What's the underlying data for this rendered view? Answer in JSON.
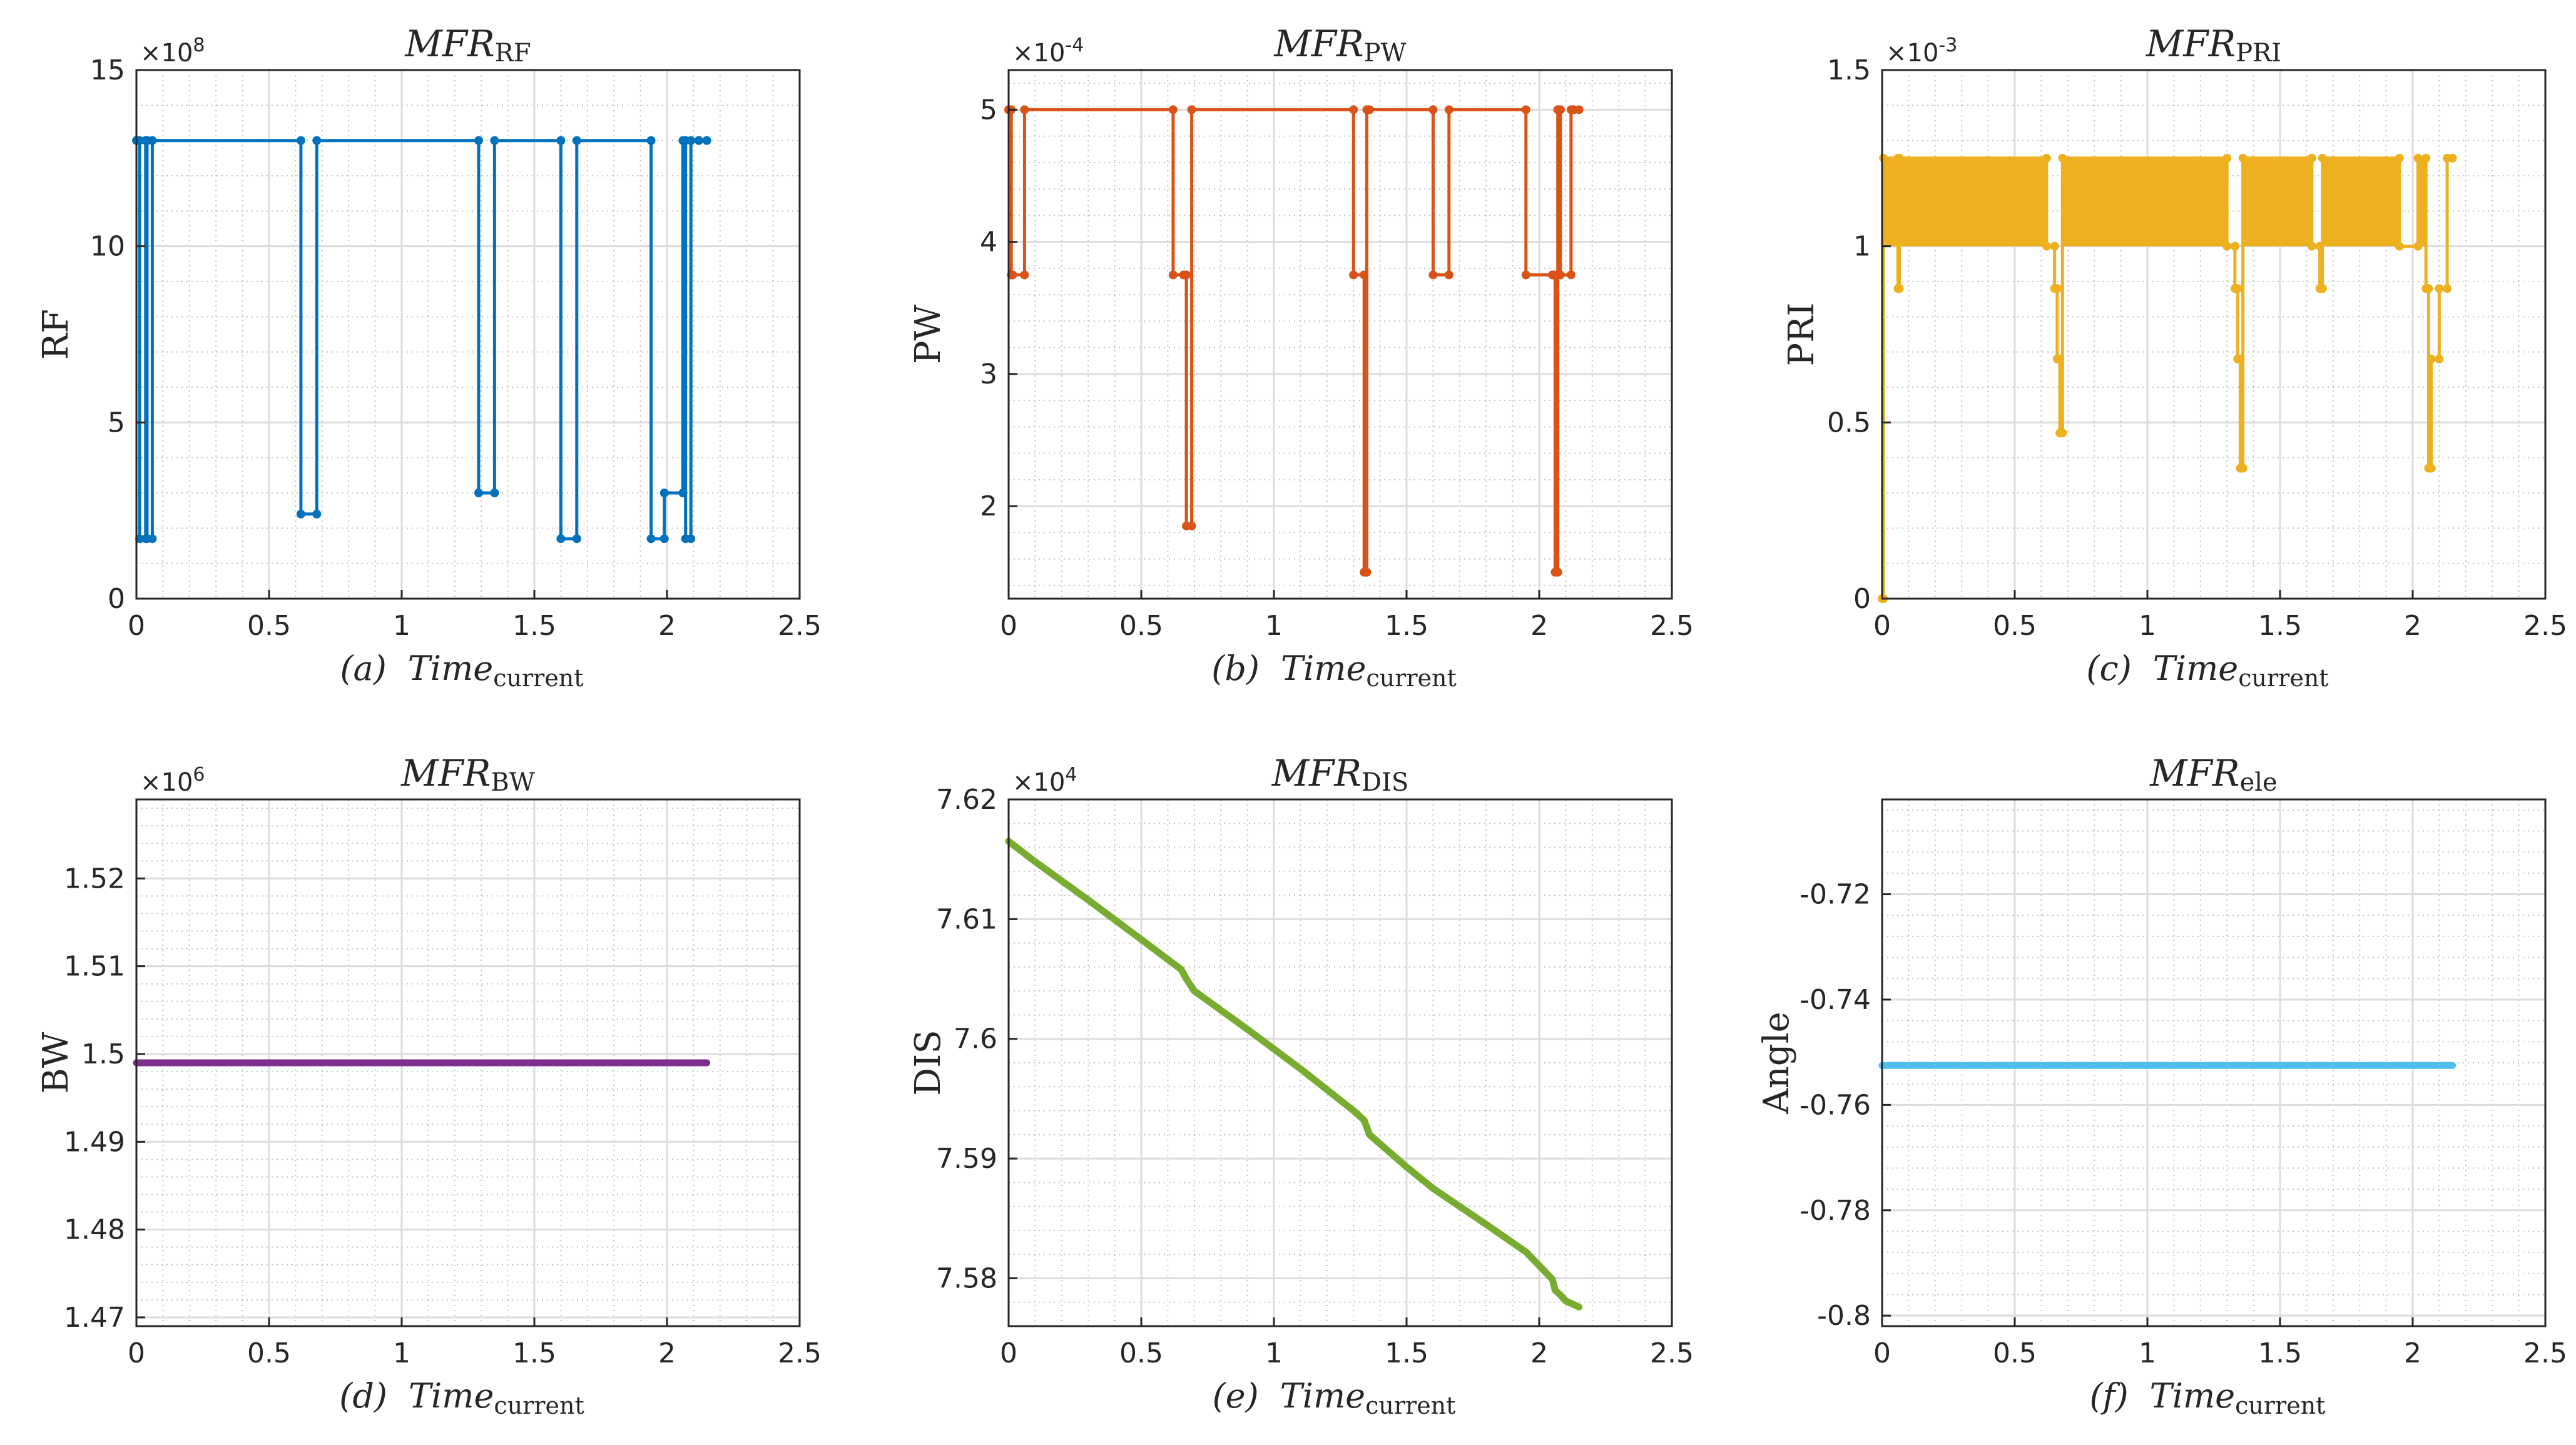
{
  "chart_data": [
    {
      "type": "line",
      "title": "MFR",
      "title_sub": "RF",
      "caption": "(a)",
      "xlabel": "Time",
      "xlabel_sub": "current",
      "ylabel": "RF",
      "exponent": {
        "base": "×10",
        "power": "8"
      },
      "xlim": [
        0,
        2.5
      ],
      "ylim": [
        0,
        15
      ],
      "xticks": [
        0,
        0.5,
        1,
        1.5,
        2,
        2.5
      ],
      "xtick_labels": [
        "0",
        "0.5",
        "1",
        "1.5",
        "2",
        "2.5"
      ],
      "yticks": [
        0,
        5,
        10,
        15
      ],
      "ytick_labels": [
        "0",
        "5",
        "10",
        "15"
      ],
      "grid": true,
      "minor_grid": true,
      "markers": true,
      "color": "#0072BD",
      "series": [
        {
          "x": [
            0,
            0.012,
            0.012,
            0.035,
            0.035,
            0.04,
            0.04,
            0.06,
            0.06,
            0.62,
            0.62,
            0.68,
            0.68,
            1.29,
            1.29,
            1.35,
            1.35,
            1.6,
            1.6,
            1.66,
            1.66,
            1.94,
            1.94,
            1.99,
            1.99,
            2.06,
            2.06,
            2.07,
            2.07,
            2.09,
            2.09,
            2.12,
            2.12,
            2.15
          ],
          "y": [
            13,
            13,
            1.7,
            1.7,
            13,
            13,
            1.7,
            1.7,
            13,
            13,
            2.4,
            2.4,
            13,
            13,
            3.0,
            3.0,
            13,
            13,
            1.7,
            1.7,
            13,
            13,
            1.7,
            1.7,
            3.0,
            3.0,
            13,
            13,
            1.7,
            1.7,
            13,
            13,
            13,
            13
          ]
        }
      ]
    },
    {
      "type": "line",
      "title": "MFR",
      "title_sub": "PW",
      "caption": "(b)",
      "xlabel": "Time",
      "xlabel_sub": "current",
      "ylabel": "PW",
      "exponent": {
        "base": "×10",
        "power": "-4"
      },
      "xlim": [
        0,
        2.5
      ],
      "ylim": [
        1.3,
        5.3
      ],
      "xticks": [
        0,
        0.5,
        1,
        1.5,
        2,
        2.5
      ],
      "xtick_labels": [
        "0",
        "0.5",
        "1",
        "1.5",
        "2",
        "2.5"
      ],
      "yticks": [
        2,
        3,
        4,
        5
      ],
      "ytick_labels": [
        "2",
        "3",
        "4",
        "5"
      ],
      "grid": true,
      "minor_grid": true,
      "markers": true,
      "color": "#D95319",
      "series": [
        {
          "x": [
            0,
            0.01,
            0.01,
            0.015,
            0.015,
            0.06,
            0.06,
            0.62,
            0.62,
            0.66,
            0.66,
            0.67,
            0.67,
            0.69,
            0.69,
            1.3,
            1.3,
            1.34,
            1.34,
            1.35,
            1.35,
            1.36,
            1.36,
            1.6,
            1.6,
            1.66,
            1.66,
            1.95,
            1.95,
            2.05,
            2.05,
            2.06,
            2.06,
            2.07,
            2.07,
            2.08,
            2.08,
            2.12,
            2.12,
            2.13,
            2.13,
            2.15
          ],
          "y": [
            5,
            5,
            3.75,
            3.75,
            3.75,
            3.75,
            5,
            5,
            3.75,
            3.75,
            3.75,
            3.75,
            1.85,
            1.85,
            5,
            5,
            3.75,
            3.75,
            1.5,
            1.5,
            5,
            5,
            5,
            5,
            3.75,
            3.75,
            5,
            5,
            3.75,
            3.75,
            3.75,
            3.75,
            1.5,
            1.5,
            5,
            5,
            3.75,
            3.75,
            5,
            5,
            5,
            5
          ]
        }
      ]
    },
    {
      "type": "line",
      "title": "MFR",
      "title_sub": "PRI",
      "caption": "(c)",
      "xlabel": "Time",
      "xlabel_sub": "current",
      "ylabel": "PRI",
      "exponent": {
        "base": "×10",
        "power": "-3"
      },
      "xlim": [
        0,
        2.5
      ],
      "ylim": [
        0,
        1.5
      ],
      "xticks": [
        0,
        0.5,
        1,
        1.5,
        2,
        2.5
      ],
      "xtick_labels": [
        "0",
        "0.5",
        "1",
        "1.5",
        "2",
        "2.5"
      ],
      "yticks": [
        0,
        0.5,
        1,
        1.5
      ],
      "ytick_labels": [
        "0",
        "0.5",
        "1",
        "1.5"
      ],
      "grid": true,
      "minor_grid": true,
      "markers": true,
      "color": "#EDB120",
      "band": {
        "ymin": 1.0,
        "ymax": 1.25,
        "segments": [
          [
            0.005,
            0.62
          ],
          [
            0.68,
            1.3
          ],
          [
            1.36,
            1.62
          ],
          [
            1.66,
            1.95
          ],
          [
            2.02,
            2.05
          ]
        ]
      },
      "series": [
        {
          "x": [
            0,
            0.005,
            0.005,
            0.06,
            0.06,
            0.065,
            0.065,
            0.62,
            0.62,
            0.65,
            0.65,
            0.66,
            0.66,
            0.67,
            0.67,
            0.68,
            0.68,
            1.3,
            1.3,
            1.33,
            1.33,
            1.34,
            1.34,
            1.35,
            1.35,
            1.36,
            1.36,
            1.62,
            1.62,
            1.65,
            1.65,
            1.66,
            1.66,
            1.95,
            1.95,
            2.02,
            2.02,
            2.05,
            2.05,
            2.06,
            2.06,
            2.07,
            2.07,
            2.1,
            2.1,
            2.13,
            2.13,
            2.15
          ],
          "y": [
            0,
            0,
            1.25,
            1.25,
            0.88,
            0.88,
            1.25,
            1.25,
            1.0,
            1.0,
            0.88,
            0.88,
            0.68,
            0.68,
            0.47,
            0.47,
            1.25,
            1.25,
            1.0,
            1.0,
            0.88,
            0.88,
            0.68,
            0.68,
            0.37,
            0.37,
            1.25,
            1.25,
            1.0,
            1.0,
            0.88,
            0.88,
            1.25,
            1.25,
            1.0,
            1.0,
            1.25,
            1.25,
            0.88,
            0.88,
            0.37,
            0.37,
            0.68,
            0.68,
            0.88,
            0.88,
            1.25,
            1.25
          ]
        }
      ]
    },
    {
      "type": "line",
      "title": "MFR",
      "title_sub": "BW",
      "caption": "(d)",
      "xlabel": "Time",
      "xlabel_sub": "current",
      "ylabel": "BW",
      "exponent": {
        "base": "×10",
        "power": "6"
      },
      "xlim": [
        0,
        2.5
      ],
      "ylim": [
        1.469,
        1.529
      ],
      "xticks": [
        0,
        0.5,
        1,
        1.5,
        2,
        2.5
      ],
      "xtick_labels": [
        "0",
        "0.5",
        "1",
        "1.5",
        "2",
        "2.5"
      ],
      "yticks": [
        1.47,
        1.48,
        1.49,
        1.5,
        1.51,
        1.52
      ],
      "ytick_labels": [
        "1.47",
        "1.48",
        "1.49",
        "1.5",
        "1.51",
        "1.52"
      ],
      "grid": true,
      "minor_grid": true,
      "markers": false,
      "color": "#7E2F8E",
      "series": [
        {
          "x": [
            0,
            2.15
          ],
          "y": [
            1.499,
            1.499
          ]
        }
      ]
    },
    {
      "type": "line",
      "title": "MFR",
      "title_sub": "DIS",
      "caption": "(e)",
      "xlabel": "Time",
      "xlabel_sub": "current",
      "ylabel": "DIS",
      "exponent": {
        "base": "×10",
        "power": "4"
      },
      "xlim": [
        0,
        2.5
      ],
      "ylim": [
        7.576,
        7.62
      ],
      "xticks": [
        0,
        0.5,
        1,
        1.5,
        2,
        2.5
      ],
      "xtick_labels": [
        "0",
        "0.5",
        "1",
        "1.5",
        "2",
        "2.5"
      ],
      "yticks": [
        7.58,
        7.59,
        7.6,
        7.61,
        7.62
      ],
      "ytick_labels": [
        "7.58",
        "7.59",
        "7.6",
        "7.61",
        "7.62"
      ],
      "grid": true,
      "minor_grid": true,
      "markers": false,
      "color": "#77AC30",
      "series": [
        {
          "x": [
            0,
            0.1,
            0.3,
            0.5,
            0.65,
            0.67,
            0.7,
            0.9,
            1.1,
            1.3,
            1.34,
            1.36,
            1.5,
            1.6,
            1.8,
            1.95,
            2.02,
            2.05,
            2.06,
            2.08,
            2.1,
            2.15
          ],
          "y": [
            7.6165,
            7.6148,
            7.6116,
            7.6083,
            7.6058,
            7.605,
            7.604,
            7.6008,
            7.5975,
            7.594,
            7.5932,
            7.592,
            7.5893,
            7.5875,
            7.5845,
            7.5822,
            7.5806,
            7.5799,
            7.579,
            7.5786,
            7.5781,
            7.5776
          ]
        }
      ]
    },
    {
      "type": "line",
      "title": "MFR",
      "title_sub": "ele",
      "caption": "(f)",
      "xlabel": "Time",
      "xlabel_sub": "current",
      "ylabel": "Angle",
      "xlim": [
        0,
        2.5
      ],
      "ylim": [
        -0.802,
        -0.702
      ],
      "xticks": [
        0,
        0.5,
        1,
        1.5,
        2,
        2.5
      ],
      "xtick_labels": [
        "0",
        "0.5",
        "1",
        "1.5",
        "2",
        "2.5"
      ],
      "yticks": [
        -0.8,
        -0.78,
        -0.76,
        -0.74,
        -0.72
      ],
      "ytick_labels": [
        "-0.8",
        "-0.78",
        "-0.76",
        "-0.74",
        "-0.72"
      ],
      "grid": true,
      "minor_grid": true,
      "markers": false,
      "color": "#4DBEEE",
      "series": [
        {
          "x": [
            0,
            2.15
          ],
          "y": [
            -0.7525,
            -0.7525
          ]
        }
      ]
    }
  ]
}
